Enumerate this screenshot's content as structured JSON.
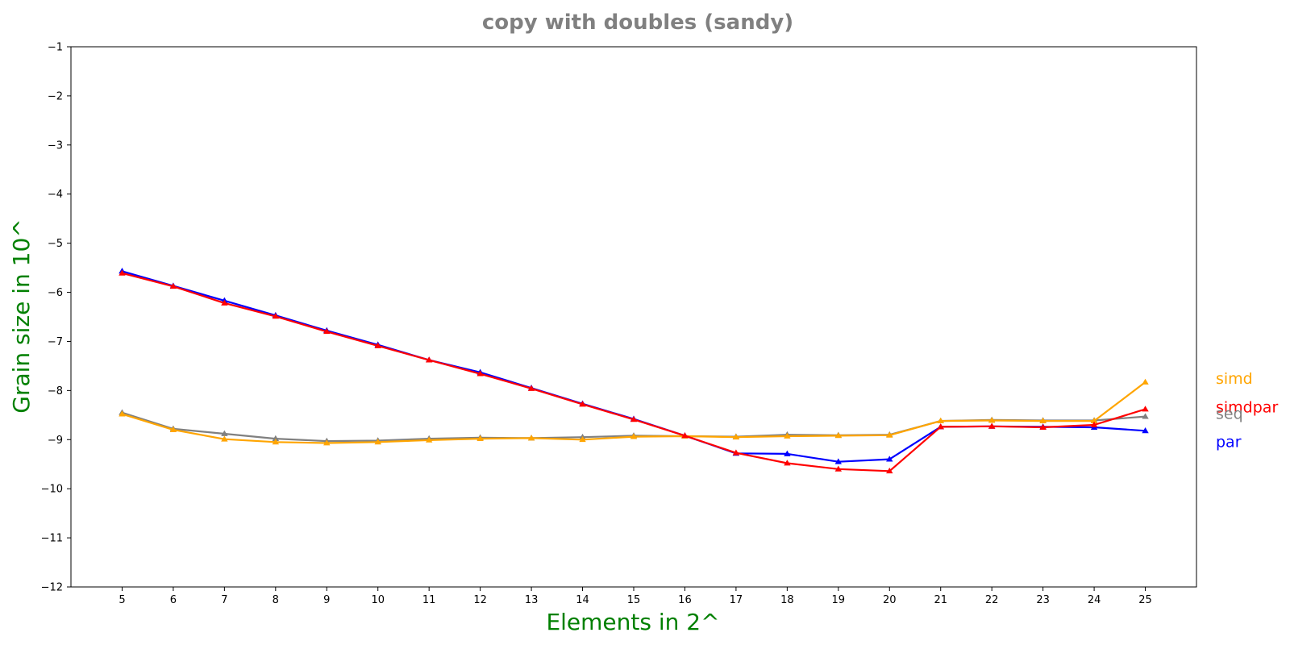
{
  "chart_data": {
    "type": "line",
    "title": "copy with doubles  (sandy)",
    "xlabel": "Elements in 2^",
    "ylabel": "Grain size in 10^",
    "xlim": [
      4,
      26
    ],
    "ylim": [
      -12,
      -1
    ],
    "x": [
      5,
      6,
      7,
      8,
      9,
      10,
      11,
      12,
      13,
      14,
      15,
      16,
      17,
      18,
      19,
      20,
      21,
      22,
      23,
      24,
      25
    ],
    "x_ticks": [
      5,
      6,
      7,
      8,
      9,
      10,
      11,
      12,
      13,
      14,
      15,
      16,
      17,
      18,
      19,
      20,
      21,
      22,
      23,
      24,
      25
    ],
    "y_ticks": [
      -1,
      -2,
      -3,
      -4,
      -5,
      -6,
      -7,
      -8,
      -9,
      -10,
      -11,
      -12
    ],
    "grid": false,
    "legend": "right-side labels",
    "marker": "tri_up",
    "series": [
      {
        "name": "seq",
        "color": "#808080",
        "values": [
          -8.45,
          -8.78,
          -8.88,
          -8.98,
          -9.03,
          -9.02,
          -8.98,
          -8.96,
          -8.97,
          -8.95,
          -8.92,
          -8.93,
          -8.94,
          -8.9,
          -8.91,
          -8.9,
          -8.62,
          -8.6,
          -8.61,
          -8.61,
          -8.53
        ]
      },
      {
        "name": "par",
        "color": "#0000ff",
        "values": [
          -5.57,
          -5.87,
          -6.17,
          -6.47,
          -6.78,
          -7.07,
          -7.38,
          -7.63,
          -7.95,
          -8.27,
          -8.58,
          -8.92,
          -9.28,
          -9.29,
          -9.45,
          -9.4,
          -8.74,
          -8.73,
          -8.74,
          -8.75,
          -8.82
        ]
      },
      {
        "name": "simd",
        "color": "#ffa500",
        "values": [
          -8.48,
          -8.8,
          -8.99,
          -9.05,
          -9.07,
          -9.05,
          -9.01,
          -8.98,
          -8.97,
          -9.0,
          -8.94,
          -8.93,
          -8.95,
          -8.93,
          -8.92,
          -8.91,
          -8.62,
          -8.61,
          -8.62,
          -8.62,
          -7.83
        ]
      },
      {
        "name": "simdpar",
        "color": "#ff0000",
        "values": [
          -5.61,
          -5.88,
          -6.22,
          -6.49,
          -6.8,
          -7.09,
          -7.38,
          -7.66,
          -7.96,
          -8.28,
          -8.59,
          -8.92,
          -9.27,
          -9.48,
          -9.6,
          -9.64,
          -8.74,
          -8.73,
          -8.75,
          -8.7,
          -8.38
        ]
      }
    ],
    "series_labels_order": [
      "simd",
      "simdpar",
      "seq",
      "par"
    ]
  }
}
